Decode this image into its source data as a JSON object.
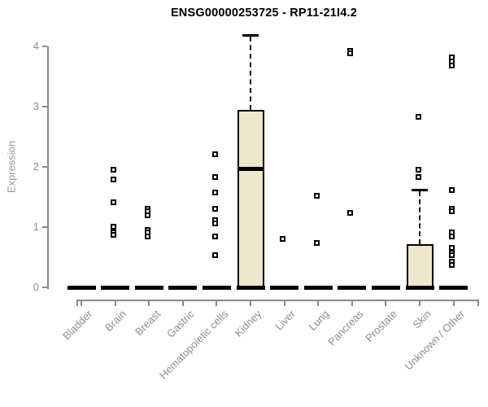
{
  "title": "ENSG00000253725 - RP11-21I4.2",
  "colors": {
    "axis": "#8a8a8a",
    "tick_label": "#8c8c8c",
    "axis_label": "#9a9a9a",
    "box_fill": "#EDE7CB",
    "marker": "#000000",
    "background": "#ffffff"
  },
  "chart_data": {
    "type": "boxplot",
    "title": "ENSG00000253725 - RP11-21I4.2",
    "xlabel": "",
    "ylabel": "Expression",
    "ylim": [
      0,
      4.3
    ],
    "yticks": [
      "0",
      "1",
      "2",
      "3",
      "4"
    ],
    "grid": false,
    "legend": "none",
    "categories": [
      "Bladder",
      "Brain",
      "Breast",
      "Gastric",
      "Hematopoietic cells",
      "Kidney",
      "Liver",
      "Lung",
      "Pancreas",
      "Prostate",
      "Skin",
      "Unknown / Other"
    ],
    "series": [
      {
        "category": "Bladder",
        "q1": 0,
        "median": 0,
        "q3": 0,
        "whisker_low": 0,
        "whisker_high": 0,
        "points": []
      },
      {
        "category": "Brain",
        "q1": 0,
        "median": 0,
        "q3": 0,
        "whisker_low": 0,
        "whisker_high": 0,
        "points": [
          1.95,
          1.79,
          1.42,
          1.01,
          0.92,
          0.87
        ]
      },
      {
        "category": "Breast",
        "q1": 0,
        "median": 0,
        "q3": 0,
        "whisker_low": 0,
        "whisker_high": 0,
        "points": [
          1.31,
          1.26,
          1.2,
          0.96,
          0.91,
          0.85
        ]
      },
      {
        "category": "Gastric",
        "q1": 0,
        "median": 0,
        "q3": 0,
        "whisker_low": 0,
        "whisker_high": 0,
        "points": []
      },
      {
        "category": "Hematopoietic cells",
        "q1": 0,
        "median": 0,
        "q3": 0,
        "whisker_low": 0,
        "whisker_high": 0,
        "points": [
          2.21,
          1.83,
          1.57,
          1.3,
          1.11,
          1.06,
          0.84,
          0.54
        ]
      },
      {
        "category": "Kidney",
        "q1": 0,
        "median": 1.97,
        "q3": 2.95,
        "whisker_low": 0,
        "whisker_high": 4.19,
        "points": []
      },
      {
        "category": "Liver",
        "q1": 0,
        "median": 0,
        "q3": 0,
        "whisker_low": 0,
        "whisker_high": 0,
        "points": [
          0.81
        ]
      },
      {
        "category": "Lung",
        "q1": 0,
        "median": 0,
        "q3": 0,
        "whisker_low": 0,
        "whisker_high": 0,
        "points": [
          1.52,
          0.74
        ]
      },
      {
        "category": "Pancreas",
        "q1": 0,
        "median": 0,
        "q3": 0,
        "whisker_low": 0,
        "whisker_high": 0,
        "points": [
          3.93,
          3.89,
          1.24
        ]
      },
      {
        "category": "Prostate",
        "q1": 0,
        "median": 0,
        "q3": 0,
        "whisker_low": 0,
        "whisker_high": 0,
        "points": []
      },
      {
        "category": "Skin",
        "q1": 0,
        "median": 0,
        "q3": 0.72,
        "whisker_low": 0,
        "whisker_high": 1.62,
        "points": [
          2.84,
          1.95,
          1.83
        ]
      },
      {
        "category": "Unknown / Other",
        "q1": 0,
        "median": 0,
        "q3": 0,
        "whisker_low": 0,
        "whisker_high": 0,
        "points": [
          3.82,
          3.76,
          3.69,
          1.62,
          1.31,
          1.27,
          0.92,
          0.85,
          0.65,
          0.58,
          0.53,
          0.42,
          0.37
        ]
      }
    ]
  }
}
